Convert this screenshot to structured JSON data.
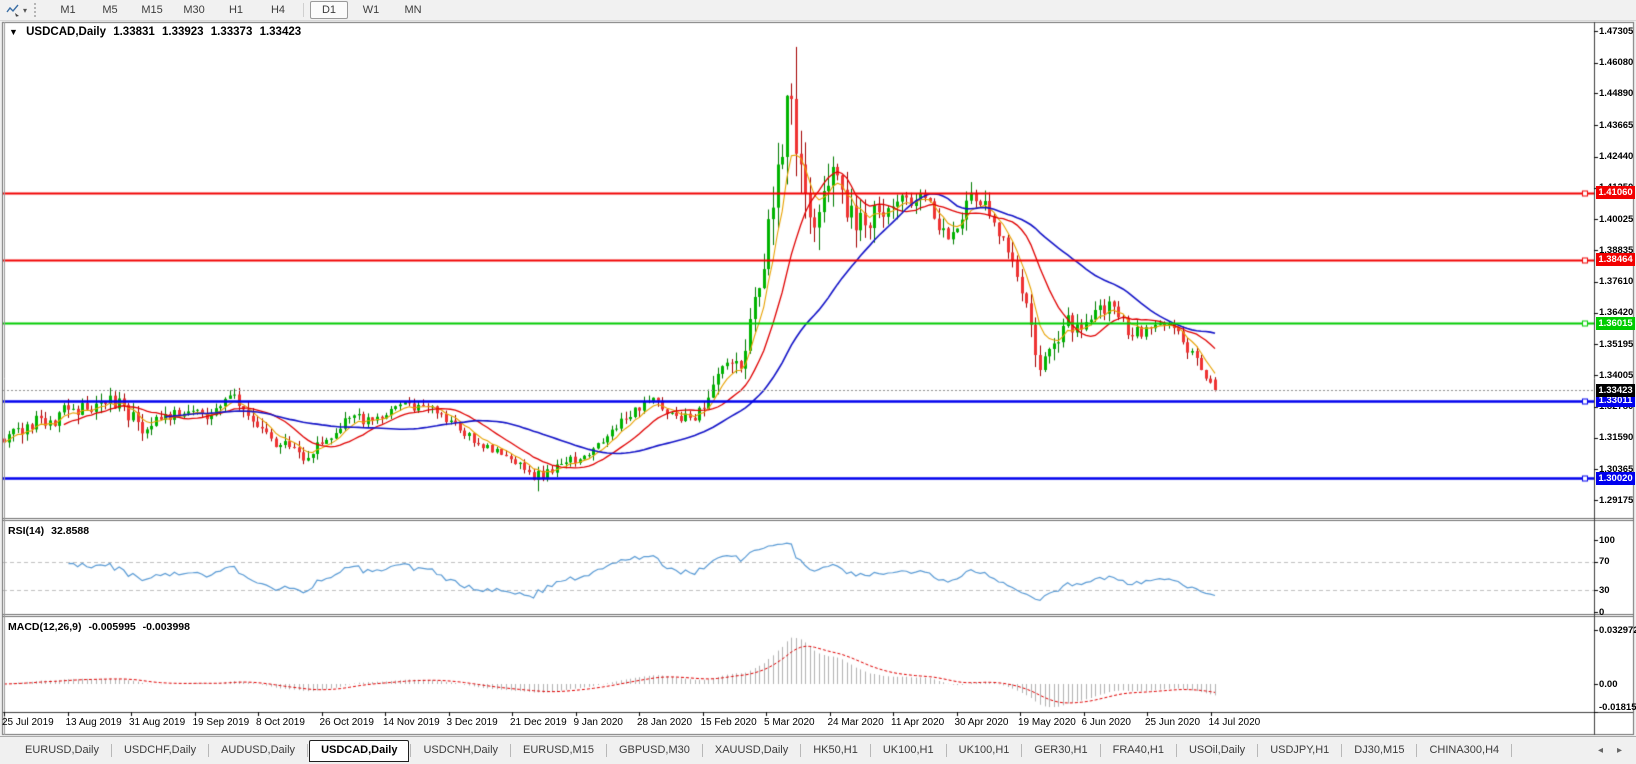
{
  "toolbar": {
    "timeframes": [
      "M1",
      "M5",
      "M15",
      "M30",
      "H1",
      "H4",
      "D1",
      "W1",
      "MN"
    ],
    "active_timeframe": "D1"
  },
  "icons": {
    "collapse_triangle": "▼",
    "dropdown_caret": "▾",
    "tab_scroll_left": "◂",
    "tab_scroll_right": "▸"
  },
  "chart_title": {
    "symbol": "USDCAD,Daily",
    "open": "1.33831",
    "high": "1.33923",
    "low": "1.33373",
    "close": "1.33423"
  },
  "price_axis": {
    "ticks": [
      "1.47305",
      "1.46080",
      "1.44890",
      "1.43665",
      "1.42440",
      "1.41250",
      "1.40025",
      "1.38835",
      "1.37610",
      "1.36420",
      "1.35195",
      "1.34005",
      "1.32780",
      "1.31590",
      "1.30365",
      "1.29175"
    ]
  },
  "date_axis": {
    "labels": [
      "25 Jul 2019",
      "13 Aug 2019",
      "31 Aug 2019",
      "19 Sep 2019",
      "8 Oct 2019",
      "26 Oct 2019",
      "14 Nov 2019",
      "3 Dec 2019",
      "21 Dec 2019",
      "9 Jan 2020",
      "28 Jan 2020",
      "15 Feb 2020",
      "5 Mar 2020",
      "24 Mar 2020",
      "11 Apr 2020",
      "30 Apr 2020",
      "19 May 2020",
      "6 Jun 2020",
      "25 Jun 2020",
      "14 Jul 2020"
    ]
  },
  "rsi_panel": {
    "name": "RSI(14)",
    "value": "32.8588",
    "ticks": [
      "100",
      "70",
      "30",
      "0"
    ],
    "tick_values": [
      100,
      70,
      30,
      0
    ],
    "guide_levels": [
      70,
      30
    ],
    "line_color": "#5a9bd5"
  },
  "macd_panel": {
    "name": "MACD(12,26,9)",
    "main_value": "-0.005995",
    "signal_value": "-0.003998",
    "ticks": [
      "0.032972",
      "0.00",
      "-0.01815"
    ],
    "tick_values": [
      0.032972,
      0,
      -0.01815
    ],
    "histogram_color": "#b2b2b2",
    "signal_color": "#e00000"
  },
  "tabs": {
    "active_index": 3,
    "items": [
      "EURUSD,Daily",
      "USDCHF,Daily",
      "AUDUSD,Daily",
      "USDCAD,Daily",
      "USDCNH,Daily",
      "EURUSD,M15",
      "GBPUSD,M30",
      "XAUUSD,Daily",
      "HK50,H1",
      "UK100,H1",
      "UK100,H1",
      "GER30,H1",
      "FRA40,H1",
      "USOil,Daily",
      "USDJPY,H1",
      "DJ30,M15",
      "CHINA300,H4"
    ]
  },
  "chart_data": {
    "type": "candlestick",
    "symbol": "USDCAD",
    "timeframe": "Daily",
    "x_range": [
      "25 Jul 2019",
      "28 Jul 2020"
    ],
    "y_axis_range": [
      1.29175,
      1.47305
    ],
    "last_candle": {
      "open": 1.33831,
      "high": 1.33923,
      "low": 1.33373,
      "close": 1.33423
    },
    "current_price": {
      "label": "1.33423",
      "value": 1.33423,
      "badge_color": "#000000",
      "line_color": "#919191"
    },
    "extremes": {
      "max_high": 1.4669,
      "min_low": 1.2951
    },
    "levels": [
      {
        "label": "1.41060",
        "price": 1.4106,
        "color": "#f20000",
        "role": "resistance"
      },
      {
        "label": "1.38464",
        "price": 1.38464,
        "color": "#f20000",
        "role": "resistance"
      },
      {
        "label": "1.36015",
        "price": 1.36015,
        "color": "#00cc00",
        "role": "pivot"
      },
      {
        "label": "1.33011",
        "price": 1.33011,
        "color": "#0000ee",
        "role": "support"
      },
      {
        "label": "1.30020",
        "price": 1.3002,
        "color": "#0000ee",
        "role": "support"
      }
    ],
    "moving_averages": [
      {
        "method": "ema",
        "period": 6,
        "color": "#e8a200",
        "width": 1.1
      },
      {
        "method": "sma",
        "period": 14,
        "color": "#e00000",
        "width": 1.3
      },
      {
        "method": "sma",
        "period": 36,
        "color": "#1414c8",
        "width": 1.6
      }
    ],
    "candle_colors": {
      "up_fill": "#00b400",
      "up_stroke": "#007c00",
      "down_fill": "#ef3333",
      "down_stroke": "#a40000"
    },
    "weekly_anchors": [
      [
        "2019-07-25",
        1.314,
        0.0035
      ],
      [
        "2019-08-02",
        1.321,
        0.0045
      ],
      [
        "2019-08-09",
        1.3225,
        0.004
      ],
      [
        "2019-08-16",
        1.327,
        0.004
      ],
      [
        "2019-08-23",
        1.329,
        0.0045
      ],
      [
        "2019-08-30",
        1.331,
        0.004
      ],
      [
        "2019-09-06",
        1.3175,
        0.004
      ],
      [
        "2019-09-13",
        1.325,
        0.0035
      ],
      [
        "2019-09-20",
        1.326,
        0.003
      ],
      [
        "2019-09-27",
        1.3245,
        0.003
      ],
      [
        "2019-10-04",
        1.3325,
        0.0035
      ],
      [
        "2019-10-11",
        1.32,
        0.004
      ],
      [
        "2019-10-18",
        1.313,
        0.0035
      ],
      [
        "2019-10-25",
        1.307,
        0.003
      ],
      [
        "2019-11-01",
        1.315,
        0.0035
      ],
      [
        "2019-11-08",
        1.3235,
        0.003
      ],
      [
        "2019-11-15",
        1.3225,
        0.0025
      ],
      [
        "2019-11-22",
        1.328,
        0.0025
      ],
      [
        "2019-11-29",
        1.3285,
        0.0025
      ],
      [
        "2019-12-06",
        1.325,
        0.003
      ],
      [
        "2019-12-13",
        1.3165,
        0.003
      ],
      [
        "2019-12-20",
        1.313,
        0.0025
      ],
      [
        "2019-12-27",
        1.3075,
        0.0025
      ],
      [
        "2020-01-03",
        1.2995,
        0.003
      ],
      [
        "2020-01-10",
        1.3055,
        0.0025
      ],
      [
        "2020-01-17",
        1.3075,
        0.0025
      ],
      [
        "2020-01-24",
        1.314,
        0.0025
      ],
      [
        "2020-01-31",
        1.323,
        0.003
      ],
      [
        "2020-02-07",
        1.33,
        0.003
      ],
      [
        "2020-02-14",
        1.3255,
        0.0025
      ],
      [
        "2020-02-21",
        1.3225,
        0.0025
      ],
      [
        "2020-02-28",
        1.3405,
        0.0045
      ],
      [
        "2020-03-06",
        1.3425,
        0.005
      ],
      [
        "2020-03-13",
        1.381,
        0.011
      ],
      [
        "2020-03-20",
        1.448,
        0.013
      ],
      [
        "2020-03-27",
        1.401,
        0.012
      ],
      [
        "2020-04-03",
        1.4205,
        0.009
      ],
      [
        "2020-04-10",
        1.396,
        0.008
      ],
      [
        "2020-04-17",
        1.403,
        0.006
      ],
      [
        "2020-04-24",
        1.4095,
        0.0055
      ],
      [
        "2020-05-01",
        1.4085,
        0.0055
      ],
      [
        "2020-05-08",
        1.3925,
        0.005
      ],
      [
        "2020-05-15",
        1.4105,
        0.005
      ],
      [
        "2020-05-22",
        1.399,
        0.0045
      ],
      [
        "2020-05-29",
        1.378,
        0.005
      ],
      [
        "2020-06-05",
        1.342,
        0.0055
      ],
      [
        "2020-06-12",
        1.359,
        0.005
      ],
      [
        "2020-06-19",
        1.3605,
        0.004
      ],
      [
        "2020-06-26",
        1.3685,
        0.004
      ],
      [
        "2020-07-03",
        1.355,
        0.0035
      ],
      [
        "2020-07-10",
        1.3595,
        0.003
      ],
      [
        "2020-07-17",
        1.357,
        0.003
      ],
      [
        "2020-07-24",
        1.342,
        0.0035
      ],
      [
        "2020-07-28",
        1.33423,
        0.0025
      ]
    ]
  }
}
